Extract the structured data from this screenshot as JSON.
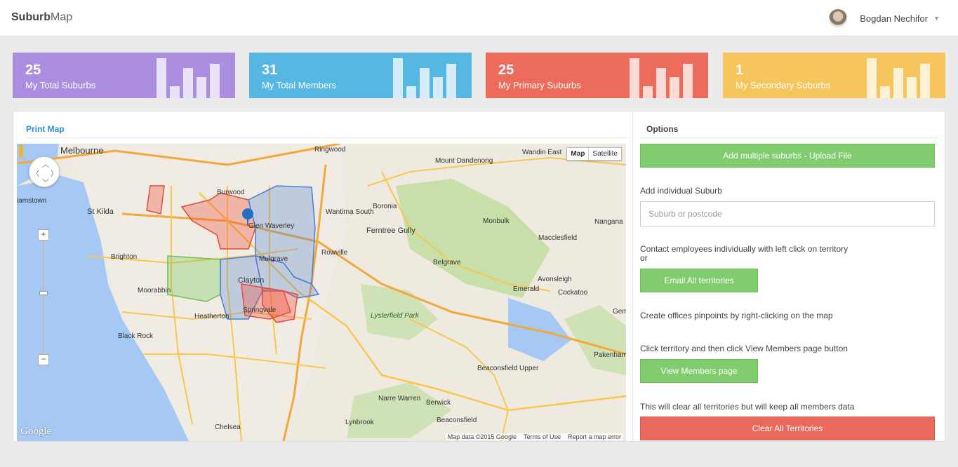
{
  "header": {
    "brand_bold": "Suburb",
    "brand_light": "Map",
    "user_name": "Bogdan Nechifor"
  },
  "stats": [
    {
      "value": "25",
      "label": "My Total Suburbs",
      "color": "#ab8ee0"
    },
    {
      "value": "31",
      "label": "My Total Members",
      "color": "#56b8e2"
    },
    {
      "value": "25",
      "label": "My Primary Suburbs",
      "color": "#ec6b5a"
    },
    {
      "value": "1",
      "label": "My Secondary Suburbs",
      "color": "#f7c55d"
    }
  ],
  "map_panel": {
    "title": "Print Map",
    "map_type_map": "Map",
    "map_type_satellite": "Satellite",
    "google_logo": "Google",
    "attribution_data": "Map data ©2015 Google",
    "attribution_terms": "Terms of Use",
    "attribution_report": "Report a map error",
    "place_labels": [
      "Melbourne",
      "St Kilda",
      "Brighton",
      "Moorabbin",
      "Black Rock",
      "Burwood",
      "Glen Waverley",
      "Clayton",
      "Mulgrave",
      "Springvale",
      "Heatherton",
      "Wantirna South",
      "Ferntree Gully",
      "Boronia",
      "Rowville",
      "Ringwood",
      "Mount Dandenong",
      "Wandin East",
      "Monbulk",
      "Macclesfield",
      "Nangana",
      "Belgrave",
      "Emerald",
      "Avonsleigh",
      "Cockatoo",
      "Lysterfield Park",
      "Beaconsfield Upper",
      "Beaconsfield",
      "Berwick",
      "Narre Warren",
      "Lynbrook",
      "Chelsea",
      "Pakenham Upper",
      "iamstown",
      "Gem"
    ]
  },
  "options": {
    "title": "Options",
    "upload_button": "Add multiple suburbs - Upload File",
    "add_individual_label": "Add individual Suburb",
    "suburb_placeholder": "Suburb or postcode",
    "contact_text": "Contact employees individually with left click on territory",
    "contact_or": "or",
    "email_button": "Email All territories",
    "offices_text": "Create offices pinpoints by right-clicking on the map",
    "members_text": "Click territory and then click View Members page button",
    "members_button": "View Members page",
    "clear_text": "This will clear all territories but will keep all members data",
    "clear_button": "Clear All Territories"
  },
  "colors": {
    "accent_blue": "#2a8fd8",
    "green_button": "#80cc6e",
    "red_button": "#e96a5d"
  }
}
